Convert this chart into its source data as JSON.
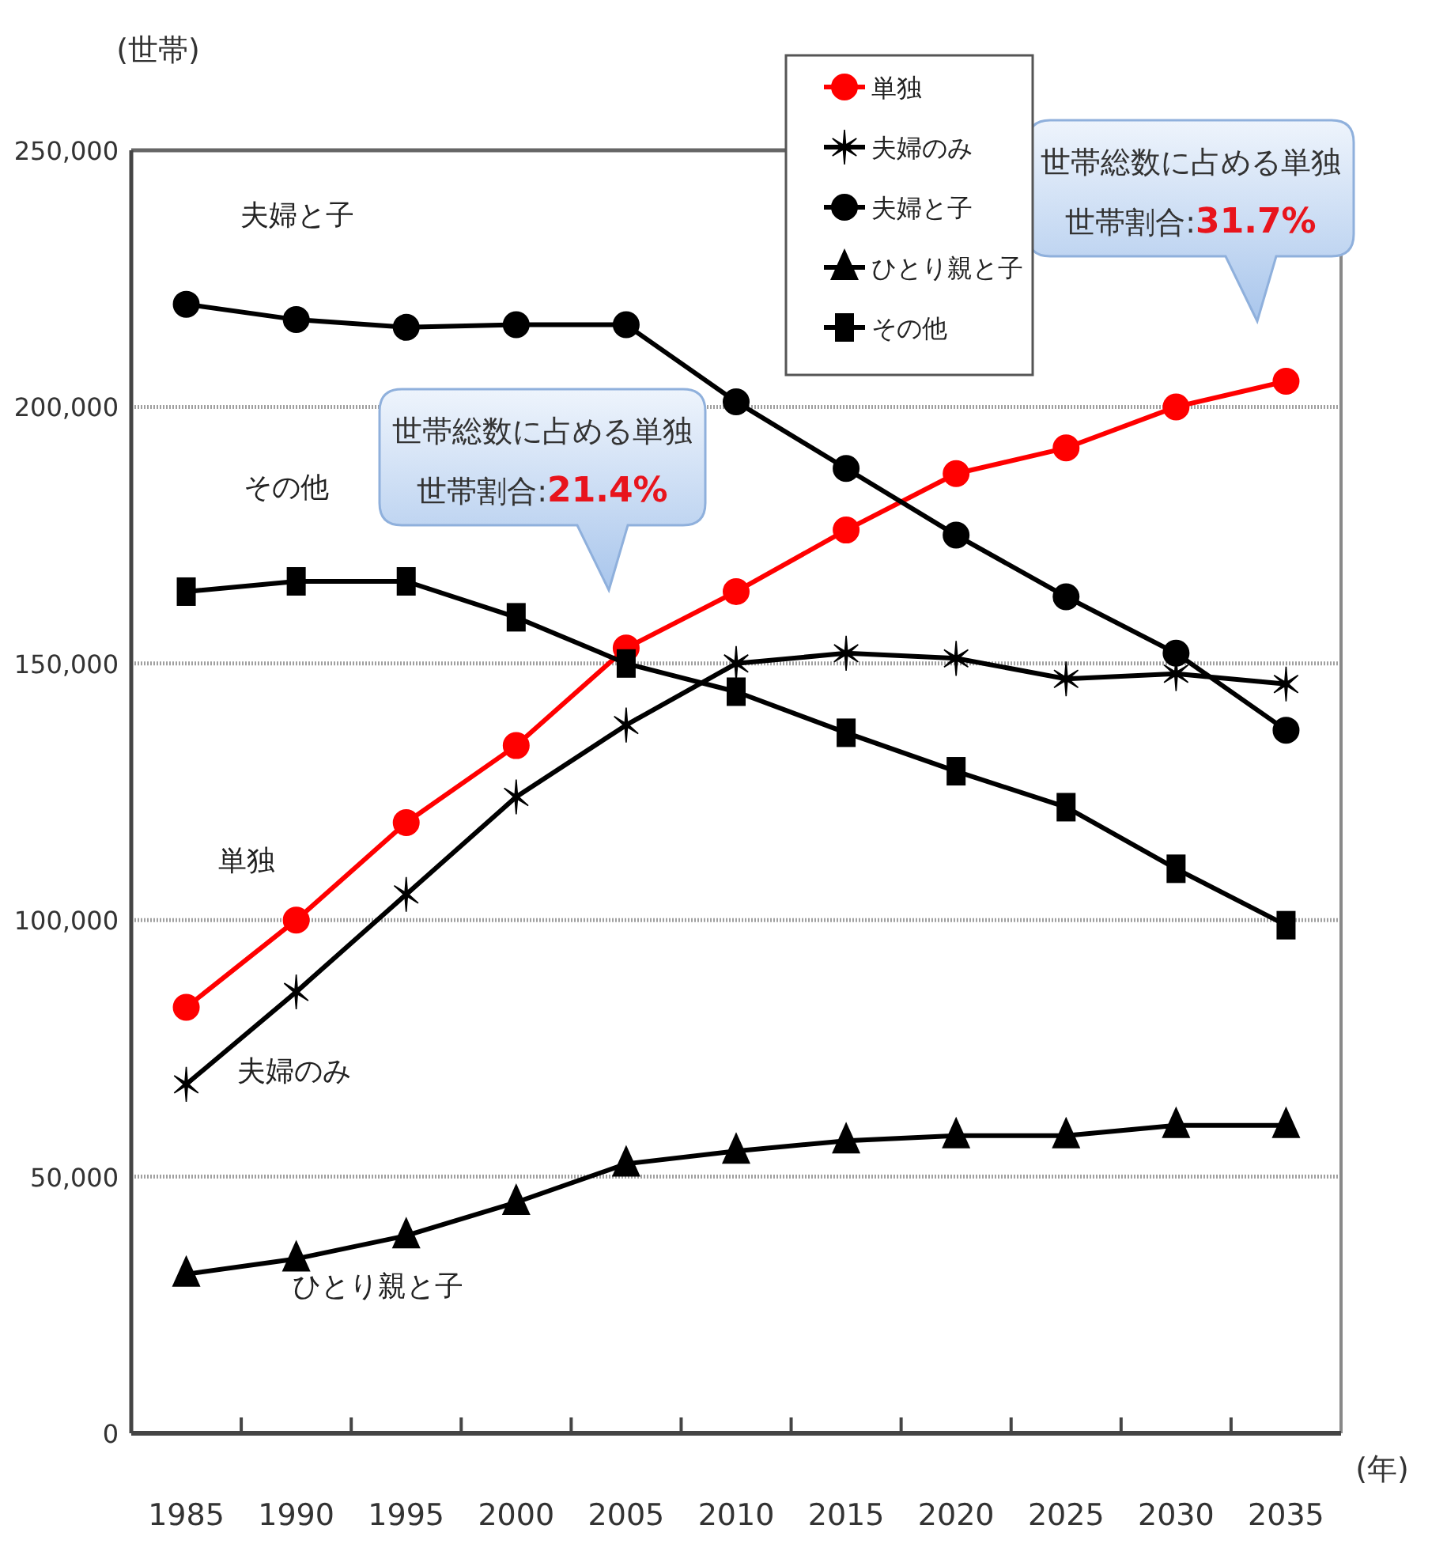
{
  "chart_data": {
    "type": "line",
    "xlabel": "(年)",
    "ylabel": "(世帯)",
    "categories": [
      "1985",
      "1990",
      "1995",
      "2000",
      "2005",
      "2010",
      "2015",
      "2020",
      "2025",
      "2030",
      "2035"
    ],
    "ylim": [
      0,
      250000
    ],
    "yticks": [
      0,
      {
        "value": 50000,
        "label": "50,000"
      },
      {
        "value": 100000,
        "label": "100,000"
      },
      {
        "value": 150000,
        "label": "150,000"
      },
      {
        "value": 200000,
        "label": "200,000"
      },
      {
        "value": 250000,
        "label": "250,000"
      }
    ],
    "grid": "y",
    "legend": "top",
    "line_style": "solid",
    "series": [
      {
        "name": "単独",
        "color": "#ff0000",
        "marker": "circle",
        "values": [
          83000,
          100000,
          119000,
          134000,
          153000,
          164000,
          176000,
          187000,
          192000,
          200000,
          205000
        ]
      },
      {
        "name": "夫婦のみ",
        "color": "#000000",
        "marker": "cross",
        "values": [
          68000,
          86000,
          105000,
          124000,
          138000,
          150000,
          152000,
          151000,
          147000,
          148000,
          146000
        ]
      },
      {
        "name": "夫婦と子",
        "color": "#000000",
        "marker": "circle",
        "values": [
          220000,
          217000,
          215500,
          216000,
          216000,
          201000,
          188000,
          175000,
          163000,
          152000,
          137000
        ]
      },
      {
        "name": "ひとり親と子",
        "color": "#000000",
        "marker": "triangle",
        "values": [
          31000,
          34000,
          38500,
          45000,
          52500,
          55000,
          57000,
          58000,
          58000,
          60000,
          60000
        ]
      },
      {
        "name": "その他",
        "color": "#000000",
        "marker": "square",
        "values": [
          164000,
          166000,
          166000,
          159000,
          150000,
          144500,
          136500,
          129000,
          122000,
          110000,
          99000
        ]
      }
    ],
    "annotations": [
      "夫婦と子",
      "その他",
      "単独",
      "夫婦のみ",
      "ひとり親と子",
      "世帯総数に占める単独世帯割合:21.4%",
      "世帯総数に占める単独世帯割合:31.7%"
    ]
  }
}
